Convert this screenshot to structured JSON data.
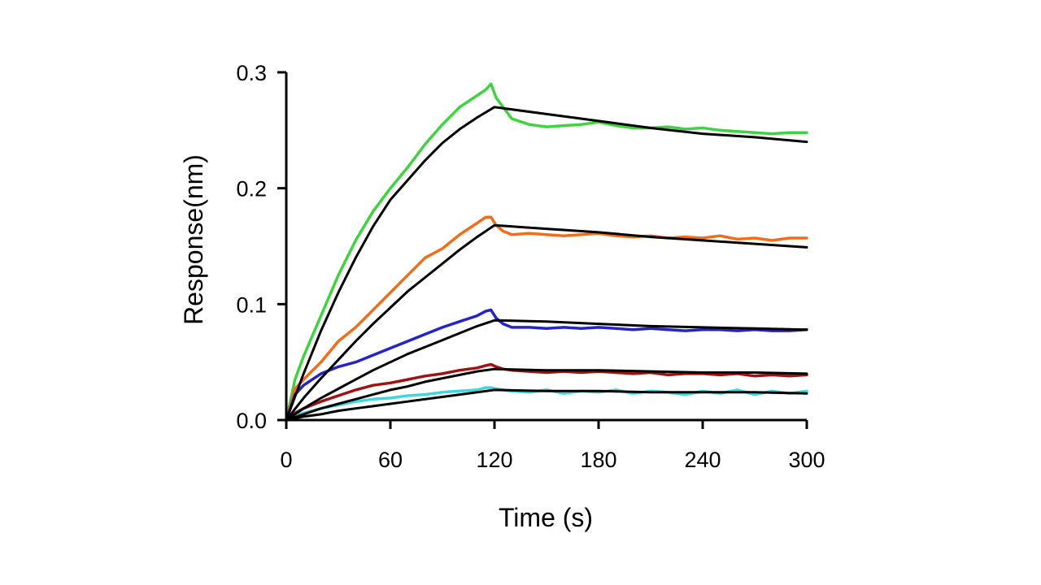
{
  "chart_data": {
    "type": "line",
    "title": "",
    "xlabel": "Time (s)",
    "ylabel": "Response(nm)",
    "xlim": [
      0,
      300
    ],
    "ylim": [
      0,
      0.3
    ],
    "xticks": [
      0,
      60,
      120,
      180,
      240,
      300
    ],
    "xtick_labels": [
      "0",
      "60",
      "120",
      "180",
      "240",
      "300"
    ],
    "yticks": [
      0,
      0.1,
      0.2,
      0.3
    ],
    "ytick_labels": [
      "0.0",
      "0.1",
      "0.2",
      "0.3"
    ],
    "grid": false,
    "legend": "none",
    "fit_color": "#000000",
    "series": [
      {
        "color": "#3fd33f",
        "kind": "measured",
        "x": [
          0,
          5,
          10,
          20,
          30,
          40,
          50,
          60,
          70,
          80,
          90,
          100,
          110,
          115,
          118,
          121,
          125,
          130,
          140,
          150,
          160,
          170,
          180,
          190,
          200,
          210,
          220,
          230,
          240,
          250,
          260,
          270,
          280,
          290,
          300
        ],
        "y": [
          0.0,
          0.035,
          0.055,
          0.09,
          0.125,
          0.155,
          0.18,
          0.2,
          0.218,
          0.238,
          0.255,
          0.27,
          0.28,
          0.285,
          0.29,
          0.278,
          0.27,
          0.26,
          0.255,
          0.253,
          0.254,
          0.255,
          0.257,
          0.254,
          0.252,
          0.252,
          0.253,
          0.251,
          0.252,
          0.25,
          0.249,
          0.248,
          0.247,
          0.248,
          0.248
        ]
      },
      {
        "color": "#000000",
        "kind": "fit",
        "x": [
          0,
          10,
          20,
          30,
          40,
          50,
          60,
          70,
          80,
          90,
          100,
          110,
          120,
          150,
          180,
          210,
          240,
          270,
          300
        ],
        "y": [
          0.0,
          0.04,
          0.077,
          0.11,
          0.14,
          0.167,
          0.19,
          0.207,
          0.224,
          0.239,
          0.251,
          0.261,
          0.27,
          0.264,
          0.258,
          0.252,
          0.247,
          0.244,
          0.24
        ]
      },
      {
        "color": "#f26d1a",
        "kind": "measured",
        "x": [
          0,
          5,
          10,
          20,
          30,
          40,
          50,
          60,
          70,
          80,
          90,
          100,
          110,
          115,
          118,
          121,
          125,
          130,
          140,
          150,
          160,
          170,
          180,
          190,
          200,
          210,
          220,
          230,
          240,
          250,
          260,
          270,
          280,
          290,
          300
        ],
        "y": [
          0.0,
          0.027,
          0.035,
          0.05,
          0.068,
          0.08,
          0.095,
          0.11,
          0.125,
          0.14,
          0.148,
          0.16,
          0.17,
          0.175,
          0.175,
          0.168,
          0.163,
          0.16,
          0.161,
          0.16,
          0.159,
          0.16,
          0.161,
          0.159,
          0.158,
          0.159,
          0.157,
          0.158,
          0.157,
          0.159,
          0.156,
          0.157,
          0.155,
          0.157,
          0.157
        ]
      },
      {
        "color": "#000000",
        "kind": "fit",
        "x": [
          0,
          10,
          20,
          30,
          40,
          50,
          60,
          70,
          80,
          90,
          100,
          110,
          120,
          150,
          180,
          210,
          240,
          270,
          300
        ],
        "y": [
          0.0,
          0.019,
          0.036,
          0.052,
          0.068,
          0.083,
          0.097,
          0.111,
          0.123,
          0.135,
          0.147,
          0.158,
          0.168,
          0.165,
          0.162,
          0.158,
          0.155,
          0.152,
          0.149
        ]
      },
      {
        "color": "#2424c8",
        "kind": "measured",
        "x": [
          0,
          5,
          10,
          20,
          30,
          40,
          50,
          60,
          70,
          80,
          90,
          100,
          110,
          115,
          118,
          121,
          125,
          130,
          140,
          150,
          160,
          170,
          180,
          190,
          200,
          210,
          220,
          230,
          240,
          250,
          260,
          270,
          280,
          290,
          300
        ],
        "y": [
          0.0,
          0.022,
          0.03,
          0.04,
          0.046,
          0.05,
          0.056,
          0.062,
          0.068,
          0.074,
          0.08,
          0.085,
          0.09,
          0.094,
          0.095,
          0.088,
          0.083,
          0.08,
          0.08,
          0.079,
          0.08,
          0.079,
          0.08,
          0.079,
          0.078,
          0.079,
          0.078,
          0.077,
          0.078,
          0.078,
          0.077,
          0.078,
          0.077,
          0.077,
          0.078
        ]
      },
      {
        "color": "#000000",
        "kind": "fit",
        "x": [
          0,
          10,
          20,
          30,
          40,
          50,
          60,
          70,
          80,
          90,
          100,
          110,
          120,
          150,
          180,
          210,
          240,
          270,
          300
        ],
        "y": [
          0.0,
          0.01,
          0.019,
          0.027,
          0.035,
          0.043,
          0.05,
          0.057,
          0.063,
          0.069,
          0.075,
          0.081,
          0.086,
          0.085,
          0.083,
          0.081,
          0.08,
          0.079,
          0.078
        ]
      },
      {
        "color": "#a01212",
        "kind": "measured",
        "x": [
          0,
          5,
          10,
          20,
          30,
          40,
          50,
          60,
          70,
          80,
          90,
          100,
          110,
          115,
          118,
          121,
          125,
          130,
          140,
          150,
          160,
          170,
          180,
          190,
          200,
          210,
          220,
          230,
          240,
          250,
          260,
          270,
          280,
          290,
          300
        ],
        "y": [
          0.0,
          0.006,
          0.01,
          0.016,
          0.021,
          0.026,
          0.03,
          0.032,
          0.035,
          0.038,
          0.04,
          0.043,
          0.045,
          0.047,
          0.048,
          0.046,
          0.044,
          0.043,
          0.042,
          0.041,
          0.042,
          0.041,
          0.042,
          0.041,
          0.04,
          0.041,
          0.039,
          0.04,
          0.04,
          0.039,
          0.04,
          0.038,
          0.039,
          0.038,
          0.039
        ]
      },
      {
        "color": "#000000",
        "kind": "fit",
        "x": [
          0,
          10,
          20,
          30,
          40,
          50,
          60,
          70,
          80,
          90,
          100,
          110,
          120,
          150,
          180,
          210,
          240,
          270,
          300
        ],
        "y": [
          0.0,
          0.005,
          0.01,
          0.014,
          0.018,
          0.022,
          0.026,
          0.029,
          0.033,
          0.036,
          0.039,
          0.042,
          0.044,
          0.043,
          0.043,
          0.042,
          0.041,
          0.041,
          0.04
        ]
      },
      {
        "color": "#3fd6de",
        "kind": "measured",
        "x": [
          0,
          5,
          10,
          20,
          30,
          40,
          50,
          60,
          70,
          80,
          90,
          100,
          110,
          115,
          118,
          121,
          125,
          130,
          140,
          150,
          160,
          170,
          180,
          190,
          200,
          210,
          220,
          230,
          240,
          250,
          260,
          270,
          280,
          290,
          300
        ],
        "y": [
          0.0,
          0.004,
          0.006,
          0.01,
          0.013,
          0.016,
          0.018,
          0.019,
          0.021,
          0.022,
          0.024,
          0.025,
          0.026,
          0.028,
          0.028,
          0.027,
          0.026,
          0.025,
          0.024,
          0.026,
          0.023,
          0.025,
          0.024,
          0.026,
          0.023,
          0.025,
          0.024,
          0.022,
          0.025,
          0.023,
          0.026,
          0.022,
          0.025,
          0.023,
          0.025
        ]
      },
      {
        "color": "#000000",
        "kind": "fit",
        "x": [
          0,
          10,
          20,
          30,
          40,
          50,
          60,
          70,
          80,
          90,
          100,
          110,
          120,
          150,
          180,
          210,
          240,
          270,
          300
        ],
        "y": [
          0.0,
          0.003,
          0.005,
          0.008,
          0.01,
          0.012,
          0.014,
          0.016,
          0.018,
          0.02,
          0.022,
          0.024,
          0.026,
          0.025,
          0.025,
          0.024,
          0.024,
          0.024,
          0.023
        ]
      }
    ]
  }
}
